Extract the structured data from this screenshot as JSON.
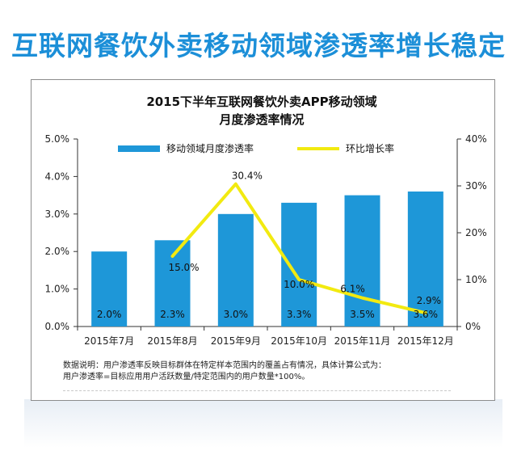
{
  "headline": "互联网餐饮外卖移动领域渗透率增长稳定",
  "note": {
    "line1": "数据说明：用户渗透率反映目标群体在特定样本范围内的覆盖占有情况，具体计算公式为：",
    "line2": "用户渗透率=目标应用用户活跃数量/特定范围内的用户数量*100%。"
  },
  "colors": {
    "headline": "#1c8fd8",
    "bar": "#1e97d8",
    "line": "#f2ea10"
  },
  "chart_data": {
    "type": "bar",
    "title_line1": "2015下半年互联网餐饮外卖APP移动领域",
    "title_line2": "月度渗透率情况",
    "categories": [
      "2015年7月",
      "2015年8月",
      "2015年9月",
      "2015年10月",
      "2015年11月",
      "2015年12月"
    ],
    "series": [
      {
        "name": "移动领域月度渗透率",
        "type": "bar",
        "axis": "left",
        "values": [
          2.0,
          2.3,
          3.0,
          3.3,
          3.5,
          3.6
        ],
        "labels": [
          "2.0%",
          "2.3%",
          "3.0%",
          "3.3%",
          "3.5%",
          "3.6%"
        ]
      },
      {
        "name": "环比增长率",
        "type": "line",
        "axis": "right",
        "values": [
          null,
          15.0,
          30.4,
          10.0,
          6.1,
          2.9
        ],
        "labels": [
          "",
          "15.0%",
          "30.4%",
          "10.0%",
          "6.1%",
          "2.9%"
        ]
      }
    ],
    "y_left": {
      "min": 0,
      "max": 5,
      "ticks": [
        "0.0%",
        "1.0%",
        "2.0%",
        "3.0%",
        "4.0%",
        "5.0%"
      ]
    },
    "y_right": {
      "min": 0,
      "max": 40,
      "ticks": [
        "0%",
        "10%",
        "20%",
        "30%",
        "40%"
      ]
    },
    "legend": "top",
    "grid": false
  }
}
